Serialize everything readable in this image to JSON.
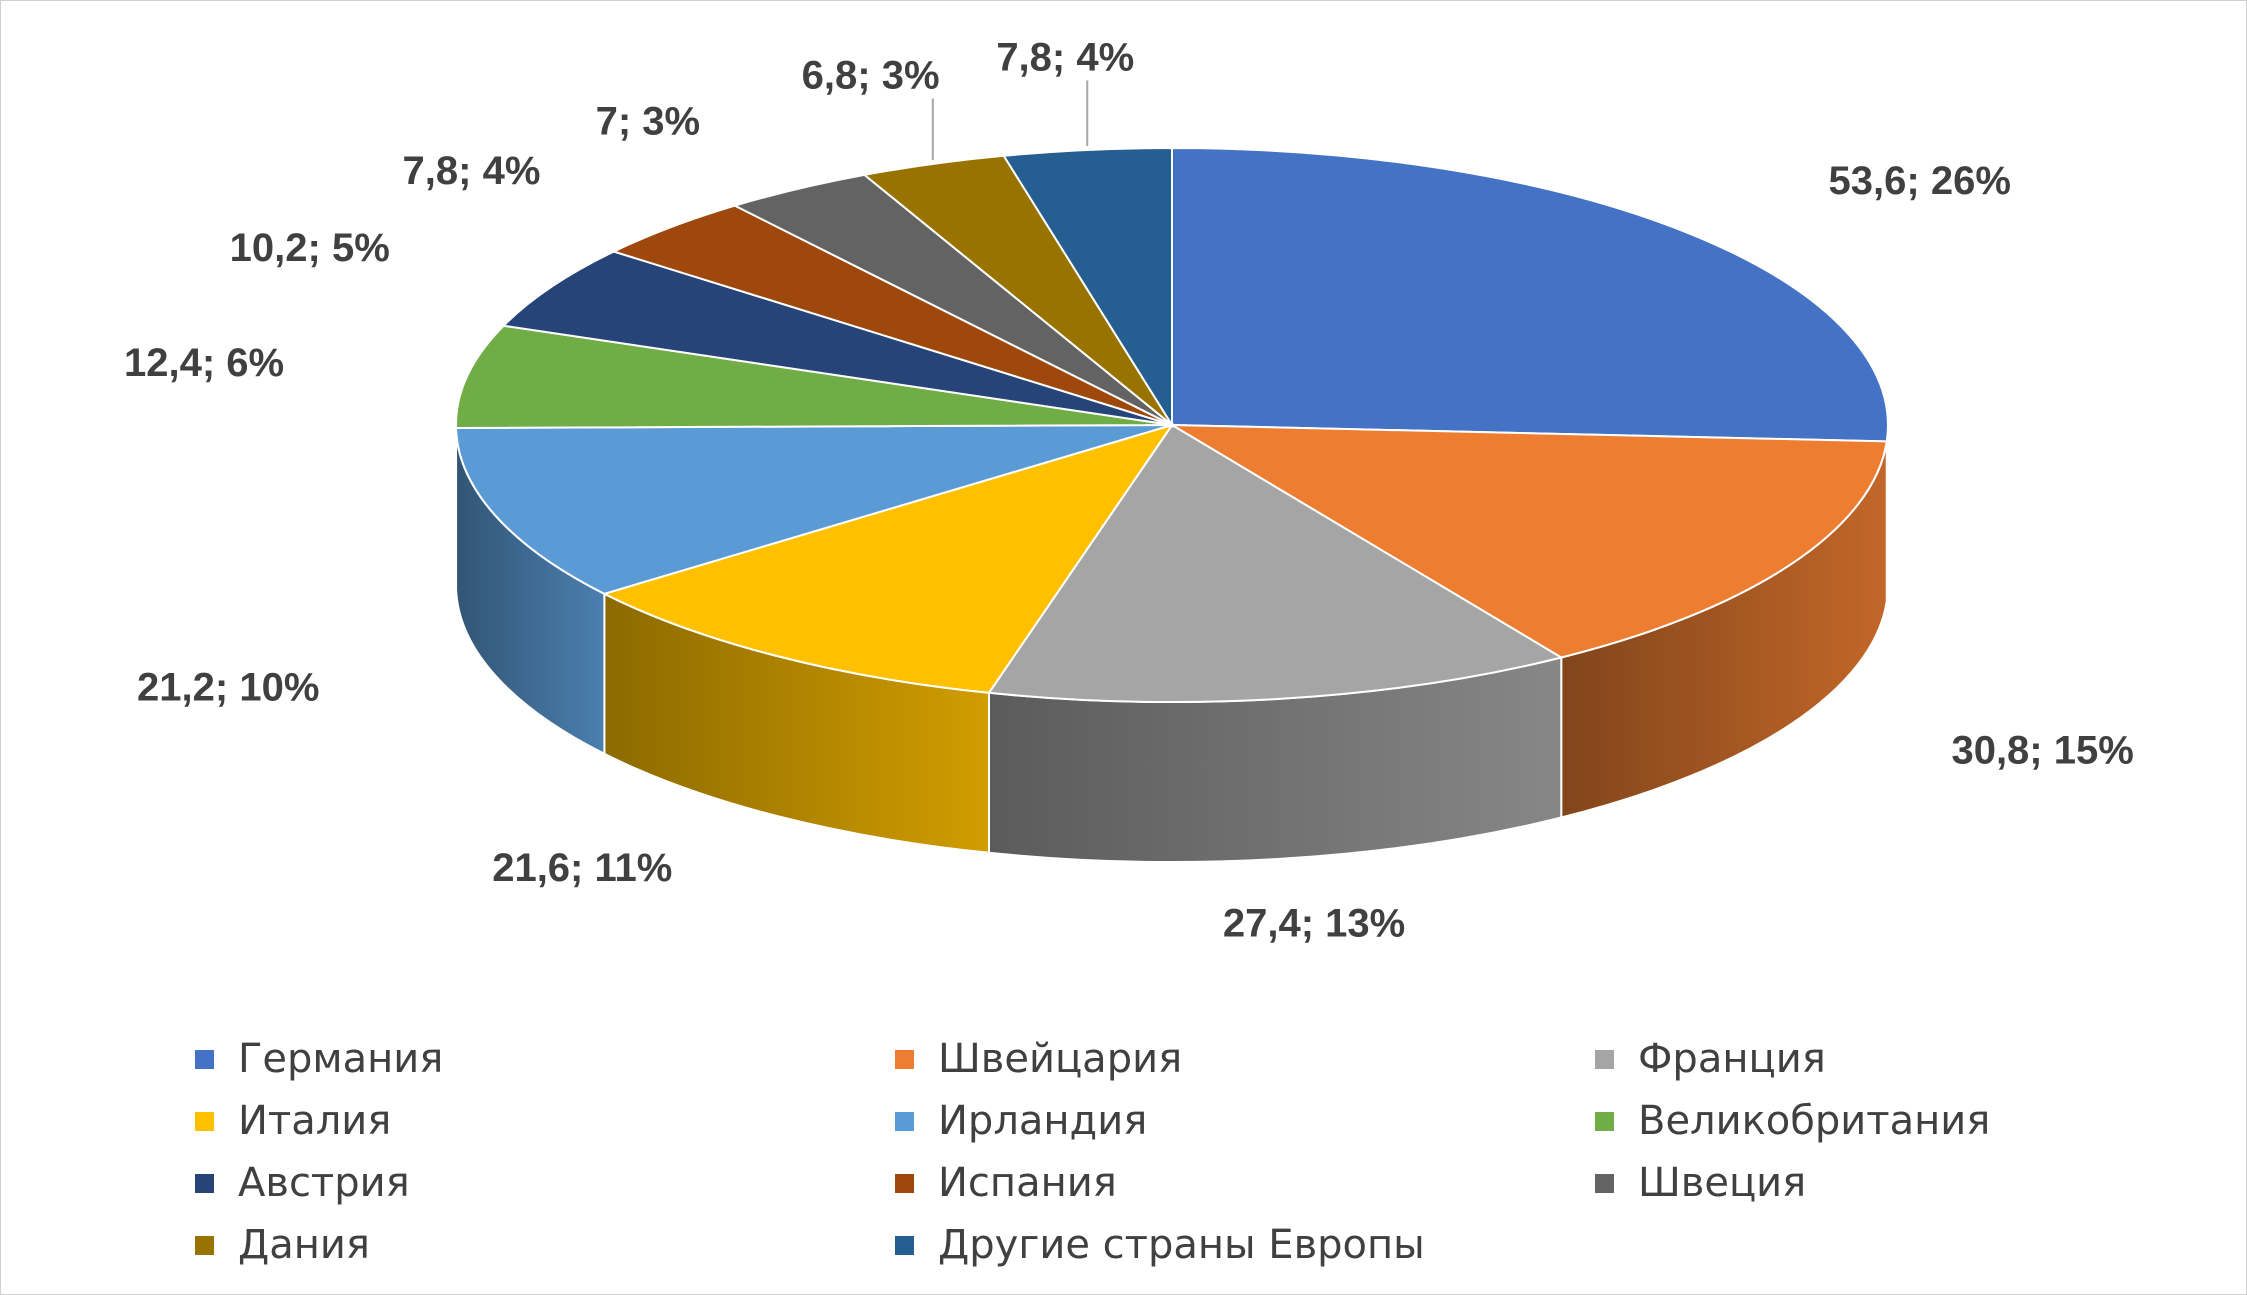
{
  "chart_data": {
    "type": "pie",
    "title": "",
    "three_d": true,
    "legend_position": "bottom",
    "categories": [
      "Германия",
      "Швейцария",
      "Франция",
      "Италия",
      "Ирландия",
      "Великобритания",
      "Австрия",
      "Испания",
      "Швеция",
      "Дания",
      "Другие страны Европы"
    ],
    "values": [
      53.6,
      30.8,
      27.4,
      21.6,
      21.2,
      12.4,
      10.2,
      7.8,
      7.0,
      6.8,
      7.8
    ],
    "percents": [
      26,
      15,
      13,
      11,
      10,
      6,
      5,
      4,
      3,
      3,
      4
    ],
    "data_labels": [
      "53,6; 26%",
      "30,8; 15%",
      "27,4; 13%",
      "21,6; 11%",
      "21,2; 10%",
      "12,4; 6%",
      "10,2; 5%",
      "7,8; 4%",
      "7; 3%",
      "6,8; 3%",
      "7,8; 4%"
    ],
    "colors": [
      "#4472C4",
      "#ED7D31",
      "#A5A5A5",
      "#FFC000",
      "#5B9BD5",
      "#70AD47",
      "#264478",
      "#9E480E",
      "#636363",
      "#997300",
      "#255E91"
    ]
  }
}
